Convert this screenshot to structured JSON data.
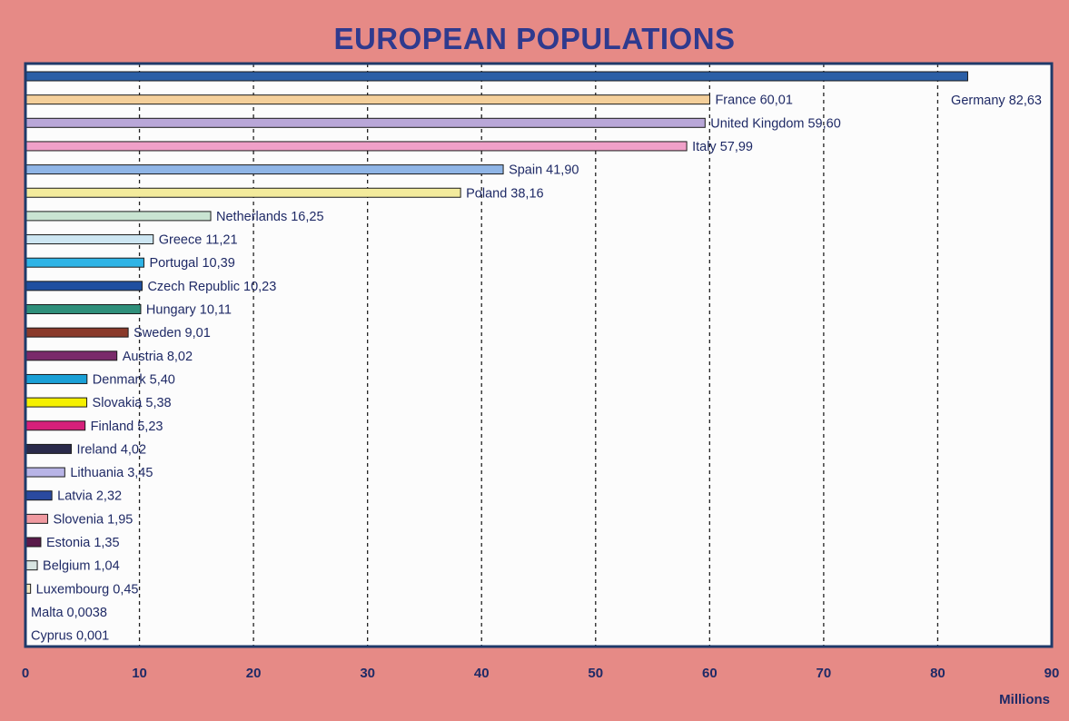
{
  "chart_data": {
    "type": "bar",
    "orientation": "horizontal",
    "title": "EUROPEAN POPULATIONS",
    "xlabel": "Millions",
    "xlim": [
      0,
      90
    ],
    "xticks": [
      0,
      10,
      20,
      30,
      40,
      50,
      60,
      70,
      80,
      90
    ],
    "grid": "vertical-dashed",
    "bars": [
      {
        "category": "Germany",
        "value": 82.63,
        "label": "Germany 82,63",
        "color": "#2b5fa6"
      },
      {
        "category": "France",
        "value": 60.01,
        "label": "France 60,01",
        "color": "#f4cf9a"
      },
      {
        "category": "United Kingdom",
        "value": 59.6,
        "label": "United Kingdom 59,60",
        "color": "#b9a7d8"
      },
      {
        "category": "Italy",
        "value": 57.99,
        "label": "Italy 57,99",
        "color": "#f0a0c8"
      },
      {
        "category": "Spain",
        "value": 41.9,
        "label": "Spain 41,90",
        "color": "#8fb5e6"
      },
      {
        "category": "Poland",
        "value": 38.16,
        "label": "Poland 38,16",
        "color": "#f3eb9c"
      },
      {
        "category": "Netherlands",
        "value": 16.25,
        "label": "Netherlands 16,25",
        "color": "#c9e4d2"
      },
      {
        "category": "Greece",
        "value": 11.21,
        "label": "Greece 11,21",
        "color": "#cde6f2"
      },
      {
        "category": "Portugal",
        "value": 10.39,
        "label": "Portugal 10,39",
        "color": "#2fb4e6"
      },
      {
        "category": "Czech Republic",
        "value": 10.23,
        "label": "Czech Republic 10,23",
        "color": "#1f4fa0"
      },
      {
        "category": "Hungary",
        "value": 10.11,
        "label": "Hungary 10,11",
        "color": "#2f8f7a"
      },
      {
        "category": "Sweden",
        "value": 9.01,
        "label": "Sweden 9,01",
        "color": "#8a3a2a"
      },
      {
        "category": "Austria",
        "value": 8.02,
        "label": "Austria 8,02",
        "color": "#7a2a6a"
      },
      {
        "category": "Denmark",
        "value": 5.4,
        "label": "Denmark 5,40",
        "color": "#1aa0d6"
      },
      {
        "category": "Slovakia",
        "value": 5.38,
        "label": "Slovakia 5,38",
        "color": "#f5f000"
      },
      {
        "category": "Finland",
        "value": 5.23,
        "label": "Finland 5,23",
        "color": "#d6207a"
      },
      {
        "category": "Ireland",
        "value": 4.02,
        "label": "Ireland 4,02",
        "color": "#2a2a4a"
      },
      {
        "category": "Lithuania",
        "value": 3.45,
        "label": "Lithuania 3,45",
        "color": "#b8b4e6"
      },
      {
        "category": "Latvia",
        "value": 2.32,
        "label": "Latvia 2,32",
        "color": "#2a4aa0"
      },
      {
        "category": "Slovenia",
        "value": 1.95,
        "label": "Slovenia 1,95",
        "color": "#f09aa0"
      },
      {
        "category": "Estonia",
        "value": 1.35,
        "label": "Estonia 1,35",
        "color": "#5a1a4a"
      },
      {
        "category": "Belgium",
        "value": 1.04,
        "label": "Belgium 1,04",
        "color": "#d8e4e0"
      },
      {
        "category": "Luxembourg",
        "value": 0.45,
        "label": "Luxembourg 0,45",
        "color": "#f4e8c0"
      },
      {
        "category": "Malta",
        "value": 0.0038,
        "label": "Malta 0,0038",
        "color": "#d0d0d0"
      },
      {
        "category": "Cyprus",
        "value": 0.001,
        "label": "Cyprus 0,001",
        "color": "#d0d0d0"
      }
    ],
    "colors": {
      "background": "#e68a86",
      "plot_background": "#fcfcfc",
      "frame": "#1f3a6a",
      "text": "#1f2a66",
      "title": "#2f3a8e"
    }
  }
}
